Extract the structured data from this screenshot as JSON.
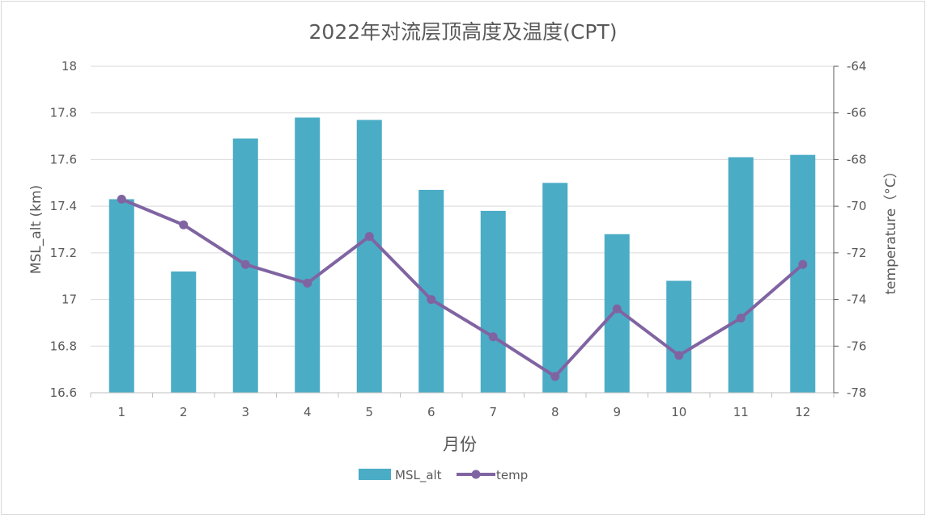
{
  "chart_data": {
    "type": "bar",
    "title": "2022年对流层顶高度及温度(CPT)",
    "xlabel": "月份",
    "ylabel": "MSL_alt (km)",
    "y2label": "temperature（°C）",
    "categories": [
      "1",
      "2",
      "3",
      "4",
      "5",
      "6",
      "7",
      "8",
      "9",
      "10",
      "11",
      "12"
    ],
    "ylim": [
      16.6,
      18
    ],
    "yticks": [
      "18",
      "17.8",
      "17.6",
      "17.4",
      "17.2",
      "17",
      "16.8",
      "16.6"
    ],
    "y2lim": [
      -78,
      -64
    ],
    "y2ticks": [
      "-64",
      "-66",
      "-68",
      "-70",
      "-72",
      "-74",
      "-76",
      "-78"
    ],
    "grid": true,
    "legend_position": "bottom",
    "series": [
      {
        "name": "MSL_alt",
        "type": "bar",
        "axis": "left",
        "color": "#4bacc6",
        "values": [
          17.43,
          17.12,
          17.69,
          17.78,
          17.77,
          17.47,
          17.38,
          17.5,
          17.28,
          17.08,
          17.61,
          17.62
        ]
      },
      {
        "name": "temp",
        "type": "line",
        "axis": "right",
        "color": "#8064a2",
        "values": [
          -69.7,
          -70.8,
          -72.5,
          -73.3,
          -71.3,
          -74.0,
          -75.6,
          -77.3,
          -74.4,
          -76.4,
          -74.8,
          -72.5
        ]
      }
    ]
  }
}
